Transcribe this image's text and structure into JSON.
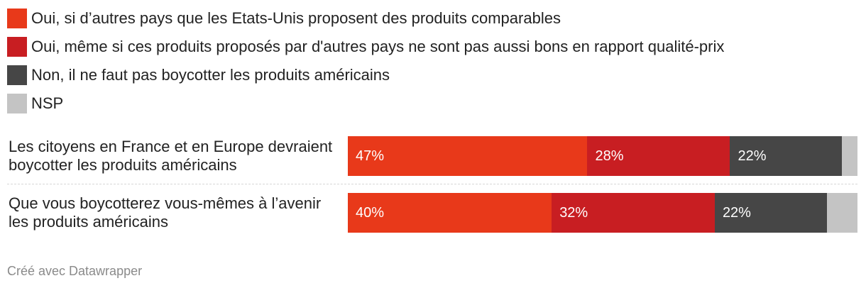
{
  "chart_data": {
    "type": "bar",
    "orientation": "horizontal",
    "stacked": true,
    "normalized_to": 100,
    "legend_position": "top-left",
    "categories": [
      "Les citoyens en France et en Europe devraient boycotter les produits américains",
      "Que vous boycotterez vous-mêmes à l’avenir les produits américains"
    ],
    "series": [
      {
        "name": "Oui, si d’autres pays que les Etats-Unis proposent des produits comparables",
        "color": "#e8391a",
        "values": [
          47,
          40
        ],
        "labels": [
          "47%",
          "40%"
        ]
      },
      {
        "name": "Oui, même si ces produits proposés par d'autres pays ne sont pas aussi bons en rapport qualité-prix",
        "color": "#c81e22",
        "values": [
          28,
          32
        ],
        "labels": [
          "28%",
          "32%"
        ]
      },
      {
        "name": "Non, il ne faut pas boycotter les produits américains",
        "color": "#464646",
        "values": [
          22,
          22
        ],
        "labels": [
          "22%",
          "22%"
        ]
      },
      {
        "name": "NSP",
        "color": "#c4c4c4",
        "values": [
          3,
          6
        ],
        "labels": [
          "",
          ""
        ]
      }
    ]
  },
  "footer": "Créé avec Datawrapper"
}
